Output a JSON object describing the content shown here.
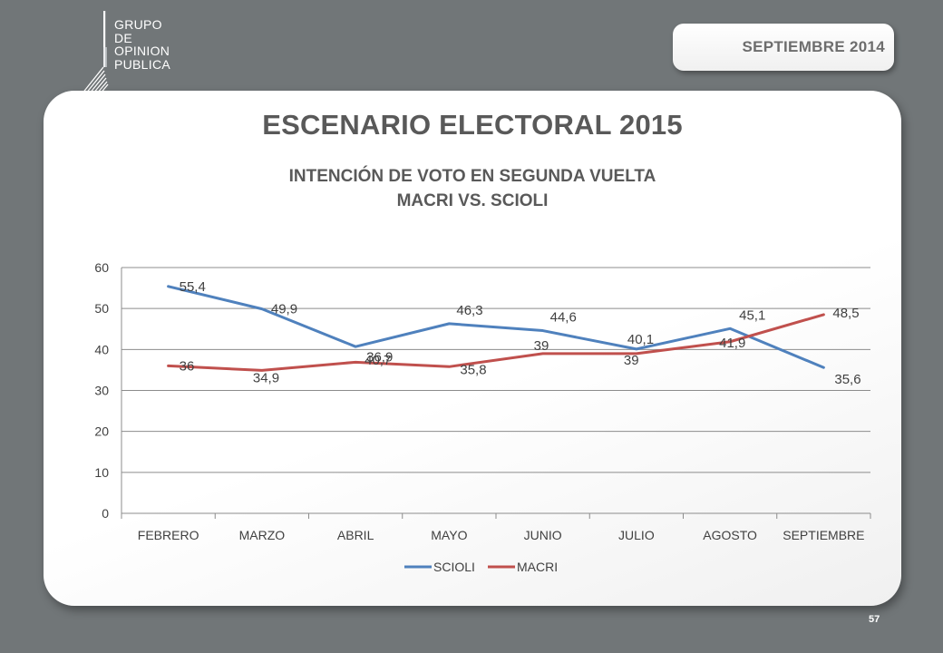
{
  "header": {
    "logo_lines": [
      "GRUPO",
      "DE",
      "OPINION",
      "PUBLICA"
    ],
    "date_label": "SEPTIEMBRE  2014"
  },
  "slide": {
    "title": "ESCENARIO ELECTORAL 2015",
    "page_number": "57"
  },
  "colors": {
    "background": "#717678",
    "scioli": "#4f81bd",
    "macri": "#c0504d",
    "text": "#595959"
  },
  "chart_data": {
    "type": "line",
    "title": "INTENCIÓN DE VOTO EN SEGUNDA VUELTA",
    "subtitle": "MACRI  VS.  SCIOLI",
    "categories": [
      "FEBRERO",
      "MARZO",
      "ABRIL",
      "MAYO",
      "JUNIO",
      "JULIO",
      "AGOSTO",
      "SEPTIEMBRE"
    ],
    "series": [
      {
        "name": "SCIOLI",
        "color": "#4f81bd",
        "values": [
          55.4,
          49.9,
          40.7,
          46.3,
          44.6,
          40.1,
          45.1,
          35.6
        ],
        "labels": [
          "55,4",
          "49,9",
          "40,7",
          "46,3",
          "44,6",
          "40,1",
          "45,1",
          "35,6"
        ]
      },
      {
        "name": "MACRI",
        "color": "#c0504d",
        "values": [
          36,
          34.9,
          36.9,
          35.8,
          39,
          39,
          41.9,
          48.5
        ],
        "labels": [
          "36",
          "34,9",
          "36,9",
          "35,8",
          "39",
          "39",
          "41,9",
          "48,5"
        ]
      }
    ],
    "ylim": [
      0,
      60
    ],
    "yticks": [
      0,
      10,
      20,
      30,
      40,
      50,
      60
    ],
    "grid": true,
    "legend": "bottom",
    "xlabel": "",
    "ylabel": ""
  }
}
